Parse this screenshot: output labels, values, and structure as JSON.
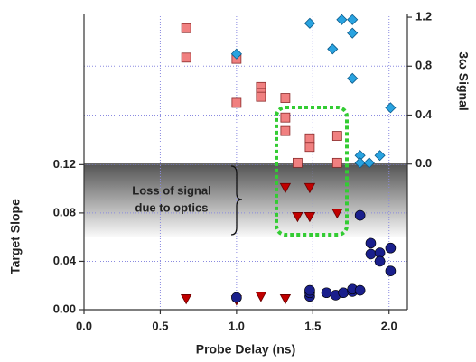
{
  "chart_data": {
    "type": "scatter",
    "x_label": "Probe Delay (ns)",
    "y_label": "Target Slope",
    "y2_label": "3ω Signal",
    "annotation": [
      "Loss of signal",
      "due to optics"
    ],
    "band": [
      0.06,
      0.12
    ],
    "grid": true,
    "xlim": [
      0,
      2.12
    ],
    "xticks": [
      {
        "value": 0,
        "label": "0.0"
      },
      {
        "value": 0.5,
        "label": "0.5"
      },
      {
        "value": 1,
        "label": "1.0"
      },
      {
        "value": 1.5,
        "label": "1.5"
      },
      {
        "value": 2,
        "label": "2.0"
      }
    ],
    "ylim": [
      0,
      0.245
    ],
    "yticks": [
      {
        "value": 0,
        "label": "0.00"
      },
      {
        "value": 0.04,
        "label": "0.04"
      },
      {
        "value": 0.08,
        "label": "0.08"
      },
      {
        "value": 0.12,
        "label": "0.12"
      }
    ],
    "y2lim": [
      -1.19,
      1.23
    ],
    "y2ticks": [
      {
        "value": 0,
        "label": "0.0"
      },
      0.4,
      0.8,
      1.2
    ],
    "series": [
      {
        "marker": "square",
        "color": "#f08080",
        "axis": "y2",
        "x": [
          0.67,
          0.67,
          1.0,
          1.0,
          1.16,
          1.16,
          1.16,
          1.32,
          1.32,
          1.32,
          1.48,
          1.48,
          1.4,
          1.66,
          1.66
        ],
        "values": [
          1.11,
          0.87,
          0.86,
          0.5,
          0.63,
          0.58,
          0.55,
          0.54,
          0.38,
          0.27,
          0.21,
          0.14,
          0.01,
          0.23,
          0.01
        ]
      },
      {
        "marker": "diamond",
        "color": "#29a3e0",
        "axis": "y2",
        "x": [
          1.48,
          1.0,
          1.63,
          1.69,
          1.76,
          1.76,
          1.76,
          1.81,
          1.81,
          1.87,
          1.94,
          2.01
        ],
        "values": [
          1.15,
          0.9,
          0.94,
          1.18,
          1.18,
          1.07,
          0.7,
          0.07,
          0.01,
          0.01,
          0.07,
          0.46
        ]
      },
      {
        "marker": "triangle",
        "color": "#c00000",
        "x": [
          0.67,
          1.0,
          1.16,
          1.32,
          1.32,
          1.48,
          1.4,
          1.48,
          1.66
        ],
        "values": [
          0.009,
          0.008,
          0.011,
          0.009,
          0.101,
          0.101,
          0.077,
          0.077,
          0.08
        ]
      },
      {
        "marker": "circle",
        "color": "#1a1f8c",
        "x": [
          1.0,
          1.48,
          1.48,
          1.48,
          1.59,
          1.65,
          1.7,
          1.76,
          1.76,
          1.81,
          1.81,
          1.88,
          1.88,
          1.94,
          1.94,
          2.01,
          2.01
        ],
        "values": [
          0.01,
          0.011,
          0.014,
          0.016,
          0.014,
          0.012,
          0.014,
          0.015,
          0.017,
          0.016,
          0.078,
          0.055,
          0.046,
          0.047,
          0.04,
          0.051,
          0.032
        ]
      }
    ]
  }
}
